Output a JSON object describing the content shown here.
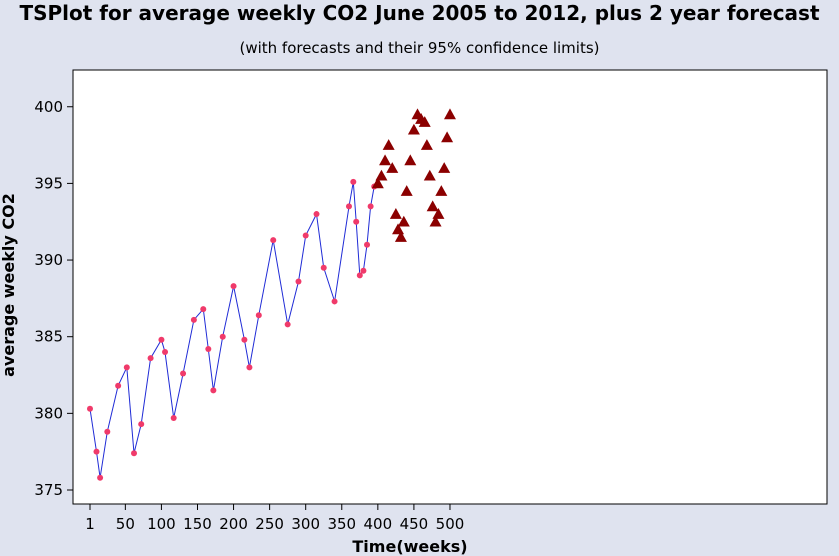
{
  "chart_data": {
    "type": "scatter",
    "title": "TSPlot for average weekly CO2 June 2005 to 2012, plus 2 year forecast",
    "subtitle": "(with forecasts and their 95% confidence limits)",
    "xlabel": "Time(weeks)",
    "ylabel": "average weekly CO2",
    "xlim": [
      1,
      500
    ],
    "ylim": [
      375,
      400
    ],
    "x_ticks": [
      1,
      50,
      100,
      150,
      200,
      250,
      300,
      350,
      400,
      450,
      500
    ],
    "y_ticks": [
      375,
      380,
      385,
      390,
      395,
      400
    ],
    "grid": false,
    "legend": "none",
    "colors": {
      "plot_background": "#ffffff",
      "page_background": "#dfe3ef",
      "observed_line": "#1f2bd6",
      "observed_points": "#f03a6a",
      "forecast_points": "#8b0000"
    },
    "series": [
      {
        "marker": "circle",
        "x": [
          1,
          10,
          15,
          25,
          40,
          52,
          62,
          72,
          85,
          100,
          105,
          117,
          130,
          145,
          158,
          165,
          172,
          185,
          200,
          215,
          222,
          235,
          255,
          275,
          290,
          300,
          315,
          325,
          340,
          360,
          366,
          370,
          375,
          380,
          385,
          390,
          395
        ],
        "y": [
          380.3,
          377.5,
          375.8,
          378.8,
          381.8,
          383.0,
          377.4,
          379.3,
          383.6,
          384.8,
          384.0,
          379.7,
          382.6,
          386.1,
          386.8,
          384.2,
          381.5,
          385.0,
          388.3,
          384.8,
          383.0,
          386.4,
          391.3,
          385.8,
          388.6,
          391.6,
          393.0,
          389.5,
          387.3,
          393.5,
          395.1,
          392.5,
          389.0,
          389.3,
          391.0,
          393.5,
          394.8
        ]
      },
      {
        "marker": "triangle",
        "x": [
          400,
          405,
          410,
          415,
          420,
          425,
          428,
          432,
          436,
          440,
          445,
          450,
          455,
          460,
          465,
          468,
          472,
          476,
          480,
          484,
          488,
          492,
          496,
          500
        ],
        "y": [
          395.0,
          395.5,
          396.5,
          397.5,
          396.0,
          393.0,
          392.0,
          391.5,
          392.5,
          394.5,
          396.5,
          398.5,
          399.5,
          399.2,
          399.0,
          397.5,
          395.5,
          393.5,
          392.5,
          393.0,
          394.5,
          396.0,
          398.0,
          399.5
        ]
      }
    ]
  }
}
